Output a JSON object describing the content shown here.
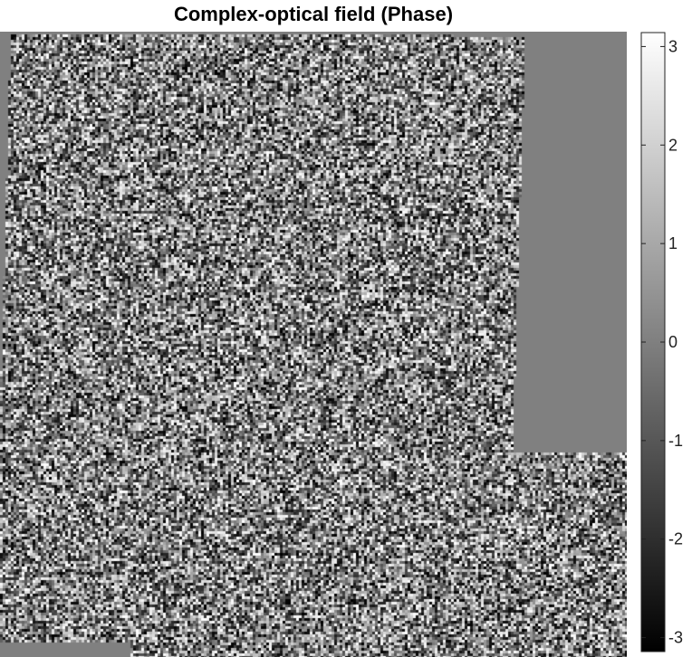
{
  "chart_data": {
    "type": "heatmap",
    "title": "Complex-optical field (Phase)",
    "colormap": "gray",
    "clim": [
      -3.1416,
      3.1416
    ],
    "colorbar": {
      "ticks": [
        3,
        2,
        1,
        0,
        -1,
        -2,
        -3
      ],
      "tick_labels": [
        "3",
        "2",
        "1",
        "0",
        "-1",
        "-2",
        "-3"
      ]
    },
    "background_value": 0,
    "content_description": "speckle phase field; uniform zero-phase regions at top-right and bottom-left edges"
  }
}
